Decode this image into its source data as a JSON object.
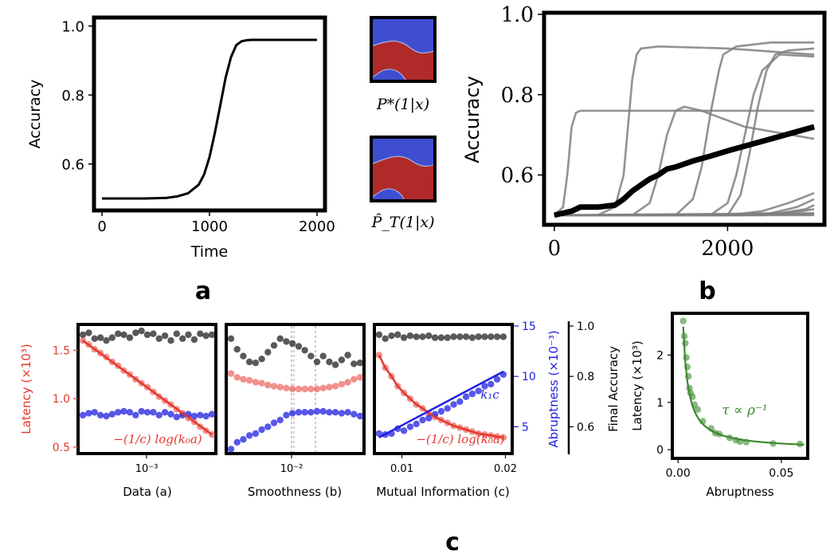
{
  "panel_labels": {
    "a": "a",
    "b": "b",
    "c": "c"
  },
  "heatmap_labels": {
    "top": "P*(1|x)",
    "bottom": "P̂_T(1|x)"
  },
  "colors": {
    "black": "#000000",
    "gray": "#7f7f7f",
    "red": "#e5372d",
    "blue": "#1f1fe0",
    "green": "#3c8a2e",
    "heat_blue": "#3f4ed1",
    "heat_red": "#b02a2a"
  },
  "chart_data": [
    {
      "id": "a",
      "type": "line",
      "xlabel": "Time",
      "ylabel": "Accuracy",
      "xlim": [
        -60,
        2060
      ],
      "ylim": [
        0.47,
        1.02
      ],
      "xticks": [
        0,
        1000,
        2000
      ],
      "xtick_labels": [
        "0",
        "1000",
        "2000"
      ],
      "yticks": [
        0.6,
        0.8,
        1.0
      ],
      "ytick_labels": [
        "0.6",
        "0.8",
        "1.0"
      ],
      "series": [
        {
          "x": [
            0,
            200,
            400,
            600,
            700,
            800,
            900,
            950,
            1000,
            1050,
            1100,
            1150,
            1200,
            1250,
            1300,
            1350,
            1400,
            1500,
            1600,
            1800,
            2000
          ],
          "y": [
            0.5,
            0.5,
            0.5,
            0.502,
            0.506,
            0.515,
            0.54,
            0.57,
            0.62,
            0.69,
            0.77,
            0.85,
            0.91,
            0.945,
            0.956,
            0.959,
            0.96,
            0.96,
            0.96,
            0.96,
            0.96
          ]
        }
      ]
    },
    {
      "id": "b",
      "type": "line",
      "ylabel": "Accuracy",
      "xlim": [
        -100,
        3100
      ],
      "ylim": [
        0.48,
        1.0
      ],
      "xticks": [
        0,
        2000
      ],
      "xtick_labels": [
        "0",
        "2000"
      ],
      "yticks": [
        0.6,
        0.8,
        1.0
      ],
      "ytick_labels": [
        "0.6",
        "0.8",
        "1.0"
      ],
      "series": [
        {
          "x": [
            0,
            100,
            150,
            200,
            250,
            300,
            500,
            1000,
            2000,
            3000
          ],
          "y": [
            0.5,
            0.52,
            0.6,
            0.72,
            0.755,
            0.76,
            0.76,
            0.76,
            0.76,
            0.76
          ]
        },
        {
          "x": [
            0,
            500,
            700,
            800,
            850,
            900,
            950,
            1000,
            1200,
            2000,
            3000
          ],
          "y": [
            0.5,
            0.5,
            0.52,
            0.6,
            0.72,
            0.84,
            0.9,
            0.915,
            0.92,
            0.915,
            0.9
          ]
        },
        {
          "x": [
            0,
            900,
            1100,
            1200,
            1300,
            1400,
            1500,
            1700,
            2200,
            3000
          ],
          "y": [
            0.5,
            0.5,
            0.53,
            0.6,
            0.7,
            0.76,
            0.77,
            0.76,
            0.72,
            0.69
          ]
        },
        {
          "x": [
            0,
            1400,
            1600,
            1700,
            1800,
            1900,
            1950,
            2100,
            2500,
            3000
          ],
          "y": [
            0.5,
            0.5,
            0.54,
            0.62,
            0.75,
            0.86,
            0.9,
            0.92,
            0.93,
            0.93
          ]
        },
        {
          "x": [
            0,
            2000,
            2150,
            2250,
            2350,
            2450,
            2550,
            2700,
            3000
          ],
          "y": [
            0.5,
            0.5,
            0.55,
            0.65,
            0.77,
            0.86,
            0.9,
            0.91,
            0.915
          ]
        },
        {
          "x": [
            0,
            1800,
            2000,
            2100,
            2200,
            2300,
            2400,
            2600,
            3000
          ],
          "y": [
            0.5,
            0.5,
            0.53,
            0.6,
            0.7,
            0.8,
            0.86,
            0.9,
            0.895
          ]
        },
        {
          "x": [
            0,
            2000,
            2400,
            2700,
            3000
          ],
          "y": [
            0.5,
            0.5,
            0.51,
            0.53,
            0.555
          ]
        },
        {
          "x": [
            0,
            2000,
            2500,
            2800,
            3000
          ],
          "y": [
            0.5,
            0.5,
            0.505,
            0.52,
            0.54
          ]
        },
        {
          "x": [
            0,
            2200,
            2600,
            2900,
            3000
          ],
          "y": [
            0.5,
            0.5,
            0.505,
            0.515,
            0.525
          ]
        },
        {
          "x": [
            0,
            2400,
            2800,
            3000
          ],
          "y": [
            0.5,
            0.5,
            0.508,
            0.515
          ]
        },
        {
          "x": [
            0,
            3000
          ],
          "y": [
            0.5,
            0.505
          ]
        },
        {
          "x": [
            0,
            3000
          ],
          "y": [
            0.5,
            0.502
          ]
        },
        {
          "x": [
            0,
            3000
          ],
          "y": [
            0.5,
            0.5
          ]
        }
      ],
      "mean": {
        "x": [
          0,
          100,
          200,
          300,
          500,
          700,
          800,
          900,
          1000,
          1100,
          1200,
          1300,
          1400,
          1600,
          1800,
          2000,
          2200,
          2400,
          2600,
          2800,
          3000
        ],
        "y": [
          0.5,
          0.505,
          0.51,
          0.52,
          0.52,
          0.525,
          0.54,
          0.56,
          0.575,
          0.59,
          0.6,
          0.615,
          0.62,
          0.635,
          0.647,
          0.66,
          0.672,
          0.684,
          0.696,
          0.708,
          0.72
        ]
      }
    },
    {
      "id": "c1",
      "type": "scatter",
      "xlabel": "Data (a)",
      "ylabel": "Latency (×10³)",
      "xscale": "log",
      "xtick_labels": [
        "10⁻³"
      ],
      "ytick_labels": [
        "0.5",
        "1.0",
        "1.5"
      ],
      "ylim": [
        0.45,
        1.75
      ],
      "fit_label": "−(1/c) log(k₀a)",
      "red_points": [
        1.6,
        1.56,
        1.51,
        1.47,
        1.43,
        1.38,
        1.34,
        1.29,
        1.25,
        1.2,
        1.16,
        1.12,
        1.07,
        1.02,
        0.98,
        0.94,
        0.89,
        0.85,
        0.8,
        0.76,
        0.71,
        0.67,
        0.63
      ],
      "blue_points": [
        0.83,
        0.85,
        0.86,
        0.83,
        0.82,
        0.84,
        0.86,
        0.87,
        0.86,
        0.83,
        0.87,
        0.86,
        0.86,
        0.83,
        0.86,
        0.84,
        0.81,
        0.83,
        0.84,
        0.82,
        0.83,
        0.82,
        0.84
      ],
      "black_points": [
        1.66,
        1.68,
        1.62,
        1.63,
        1.6,
        1.63,
        1.67,
        1.66,
        1.63,
        1.68,
        1.7,
        1.66,
        1.67,
        1.62,
        1.65,
        1.6,
        1.67,
        1.62,
        1.66,
        1.61,
        1.67,
        1.65,
        1.66
      ]
    },
    {
      "id": "c2",
      "type": "scatter",
      "xlabel": "Smoothness (b)",
      "xscale": "log",
      "xtick_labels": [
        "10⁻²"
      ],
      "ylim": [
        0.45,
        1.75
      ],
      "red_points": [
        1.26,
        1.22,
        1.2,
        1.19,
        1.17,
        1.16,
        1.14,
        1.13,
        1.12,
        1.11,
        1.1,
        1.1,
        1.1,
        1.1,
        1.1,
        1.11,
        1.12,
        1.13,
        1.15,
        1.17,
        1.2,
        1.22
      ],
      "blue_points": [
        0.48,
        0.55,
        0.58,
        0.62,
        0.64,
        0.68,
        0.71,
        0.75,
        0.78,
        0.83,
        0.85,
        0.86,
        0.86,
        0.86,
        0.87,
        0.87,
        0.86,
        0.86,
        0.85,
        0.86,
        0.84,
        0.82
      ],
      "black_points": [
        1.62,
        1.51,
        1.44,
        1.38,
        1.37,
        1.41,
        1.48,
        1.55,
        1.62,
        1.59,
        1.57,
        1.54,
        1.5,
        1.44,
        1.38,
        1.44,
        1.38,
        1.35,
        1.4,
        1.45,
        1.36,
        1.37
      ]
    },
    {
      "id": "c3",
      "type": "scatter",
      "xlabel": "Mutual Information (c)",
      "xlim": [
        0.0075,
        0.0205
      ],
      "xticks": [
        0.01,
        0.02
      ],
      "xtick_labels": [
        "0.01",
        "0.02"
      ],
      "ylim": [
        0.45,
        1.75
      ],
      "right_axis_1": {
        "label": "Abruptness (×10⁻³)",
        "ticks": [
          5,
          10,
          15
        ],
        "tick_labels": [
          "5",
          "10",
          "15"
        ],
        "range": [
          2.5,
          15
        ]
      },
      "right_axis_2": {
        "label": "Final Accuracy",
        "ticks": [
          0.6,
          0.8,
          1.0
        ],
        "tick_labels": [
          "0.6",
          "0.8",
          "1.0"
        ],
        "range": [
          0.5,
          1.0
        ]
      },
      "fit_label_red": "−(1/c) log(k₀a)",
      "fit_label_blue": "k₁c",
      "x": [
        0.0078,
        0.0084,
        0.009,
        0.0096,
        0.0102,
        0.0108,
        0.0114,
        0.012,
        0.0126,
        0.0132,
        0.0138,
        0.0144,
        0.015,
        0.0156,
        0.0162,
        0.0168,
        0.0174,
        0.018,
        0.0186,
        0.0192,
        0.0198
      ],
      "red_points": [
        1.45,
        1.32,
        1.23,
        1.13,
        1.06,
        1.0,
        0.94,
        0.9,
        0.85,
        0.81,
        0.78,
        0.75,
        0.72,
        0.7,
        0.68,
        0.66,
        0.64,
        0.63,
        0.62,
        0.61,
        0.6
      ],
      "blue_points": [
        0.64,
        0.63,
        0.64,
        0.69,
        0.67,
        0.71,
        0.74,
        0.78,
        0.8,
        0.84,
        0.87,
        0.9,
        0.94,
        0.97,
        1.02,
        1.05,
        1.08,
        1.13,
        1.15,
        1.2,
        1.25
      ],
      "black_points": [
        1.66,
        1.62,
        1.65,
        1.66,
        1.63,
        1.65,
        1.64,
        1.64,
        1.65,
        1.63,
        1.63,
        1.63,
        1.64,
        1.64,
        1.64,
        1.63,
        1.64,
        1.64,
        1.64,
        1.64,
        1.64
      ]
    },
    {
      "id": "c4",
      "type": "scatter",
      "xlabel": "Abruptness",
      "ylabel": "Latency (×10³)",
      "xlim": [
        -0.002,
        0.062
      ],
      "ylim": [
        -0.15,
        2.85
      ],
      "xticks": [
        0,
        0.05
      ],
      "xtick_labels": [
        "0.00",
        "0.05"
      ],
      "yticks": [
        0,
        1,
        2
      ],
      "ytick_labels": [
        "0",
        "1",
        "2"
      ],
      "fit_label": "τ ∝ ρ⁻¹",
      "points": [
        [
          0.0025,
          2.72
        ],
        [
          0.003,
          2.4
        ],
        [
          0.0035,
          2.25
        ],
        [
          0.004,
          1.95
        ],
        [
          0.0045,
          1.75
        ],
        [
          0.005,
          1.55
        ],
        [
          0.0055,
          1.3
        ],
        [
          0.006,
          1.2
        ],
        [
          0.007,
          1.12
        ],
        [
          0.008,
          0.95
        ],
        [
          0.0095,
          0.85
        ],
        [
          0.012,
          0.6
        ],
        [
          0.016,
          0.45
        ],
        [
          0.018,
          0.35
        ],
        [
          0.02,
          0.33
        ],
        [
          0.025,
          0.25
        ],
        [
          0.028,
          0.2
        ],
        [
          0.03,
          0.17
        ],
        [
          0.033,
          0.16
        ],
        [
          0.046,
          0.13
        ],
        [
          0.059,
          0.12
        ]
      ]
    }
  ]
}
